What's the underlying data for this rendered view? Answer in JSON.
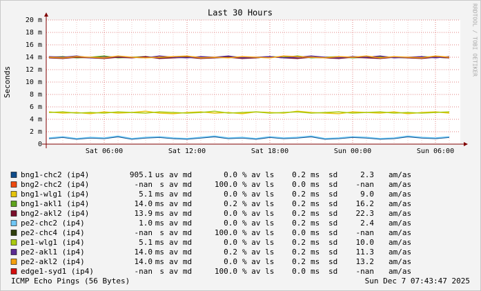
{
  "chart_data": {
    "type": "line",
    "title": "Last 30 Hours",
    "y_label": "Seconds",
    "side_note": "RRDTOOL / TOBI OETIKER",
    "footer_left": "ICMP Echo Pings (56 Bytes)",
    "footer_right": "Sun Dec  7 07:43:47 2025",
    "grid": true,
    "xlim": [
      "Sat 01:48",
      "Sun 07:48"
    ],
    "xticks": [
      "Sat 06:00",
      "Sat 12:00",
      "Sat 18:00",
      "Sun 00:00",
      "Sun 06:00"
    ],
    "ylim": [
      0,
      0.02
    ],
    "yticks": [
      0,
      {
        "value": 0.002,
        "label": "2 m"
      },
      {
        "value": 0.004,
        "label": "4 m"
      },
      {
        "value": 0.006,
        "label": "6 m"
      },
      {
        "value": 0.008,
        "label": "8 m"
      },
      {
        "value": 0.01,
        "label": "10 m"
      },
      {
        "value": 0.012,
        "label": "12 m"
      },
      {
        "value": 0.014,
        "label": "14 m"
      },
      {
        "value": 0.016,
        "label": "16 m"
      },
      {
        "value": 0.018,
        "label": "18 m"
      },
      {
        "value": 0.02,
        "label": "20 m"
      }
    ],
    "x": [
      "Sat 02:00",
      "Sat 03:00",
      "Sat 04:00",
      "Sat 05:00",
      "Sat 06:00",
      "Sat 07:00",
      "Sat 08:00",
      "Sat 09:00",
      "Sat 10:00",
      "Sat 11:00",
      "Sat 12:00",
      "Sat 13:00",
      "Sat 14:00",
      "Sat 15:00",
      "Sat 16:00",
      "Sat 17:00",
      "Sat 18:00",
      "Sat 19:00",
      "Sat 20:00",
      "Sat 21:00",
      "Sat 22:00",
      "Sat 23:00",
      "Sun 00:00",
      "Sun 01:00",
      "Sun 02:00",
      "Sun 03:00",
      "Sun 04:00",
      "Sun 05:00",
      "Sun 06:00",
      "Sun 07:00"
    ],
    "legend_labels": {
      "median": "av md",
      "loss": "% av ls",
      "sd": "sd",
      "ratio": "am/as"
    },
    "series": [
      {
        "name": "bng1-chc2 (ip4)",
        "color": "#0f4c8a",
        "median": "905.1",
        "median_unit": "us",
        "loss": "0.0",
        "sd": "0.2",
        "sd_unit": "ms",
        "ratio": "2.3",
        "values": [
          0.0009,
          0.0011,
          0.0008,
          0.001,
          0.0009,
          0.0012,
          0.0008,
          0.001,
          0.0011,
          0.0009,
          0.0008,
          0.001,
          0.0012,
          0.0009,
          0.001,
          0.0008,
          0.0011,
          0.0009,
          0.001,
          0.0012,
          0.0008,
          0.0009,
          0.0011,
          0.001,
          0.0008,
          0.0009,
          0.0012,
          0.001,
          0.0009,
          0.0011
        ]
      },
      {
        "name": "bng2-chc2 (ip4)",
        "color": "#ee4a0f",
        "median": "-nan",
        "median_unit": "s",
        "loss": "100.0",
        "sd": "0.0",
        "sd_unit": "ms",
        "ratio": "-nan",
        "values": [
          null,
          null,
          null,
          null,
          null,
          null,
          null,
          null,
          null,
          null,
          null,
          null,
          null,
          null,
          null,
          null,
          null,
          null,
          null,
          null,
          null,
          null,
          null,
          null,
          null,
          null,
          null,
          null,
          null,
          null
        ]
      },
      {
        "name": "bng1-wlg1 (ip4)",
        "color": "#e6c40a",
        "median": "5.1",
        "median_unit": "ms",
        "loss": "0.0",
        "sd": "0.2",
        "sd_unit": "ms",
        "ratio": "9.0",
        "values": [
          0.0052,
          0.005,
          0.0051,
          0.0049,
          0.0052,
          0.005,
          0.0051,
          0.0053,
          0.005,
          0.0049,
          0.0051,
          0.0052,
          0.005,
          0.0051,
          0.0049,
          0.0052,
          0.0051,
          0.005,
          0.0053,
          0.0051,
          0.005,
          0.0049,
          0.0052,
          0.0051,
          0.005,
          0.0052,
          0.0049,
          0.0051,
          0.0052,
          0.005
        ]
      },
      {
        "name": "bng1-akl1 (ip4)",
        "color": "#5ea31d",
        "median": "14.0",
        "median_unit": "ms",
        "loss": "0.2",
        "sd": "0.2",
        "sd_unit": "ms",
        "ratio": "16.2",
        "values": [
          0.014,
          0.0141,
          0.0139,
          0.014,
          0.0142,
          0.0139,
          0.014,
          0.0141,
          0.0139,
          0.014,
          0.0141,
          0.014,
          0.0139,
          0.0141,
          0.014,
          0.0139,
          0.0141,
          0.014,
          0.0142,
          0.0139,
          0.014,
          0.0141,
          0.0139,
          0.014,
          0.0141,
          0.014,
          0.0139,
          0.0141,
          0.014,
          0.0139
        ]
      },
      {
        "name": "bng2-akl2 (ip4)",
        "color": "#7a0f2b",
        "median": "13.9",
        "median_unit": "ms",
        "loss": "0.0",
        "sd": "0.2",
        "sd_unit": "ms",
        "ratio": "22.3",
        "values": [
          0.0139,
          0.0138,
          0.014,
          0.0139,
          0.0138,
          0.014,
          0.0139,
          0.0141,
          0.0138,
          0.0139,
          0.014,
          0.0138,
          0.0139,
          0.014,
          0.0138,
          0.0139,
          0.0141,
          0.0139,
          0.0138,
          0.014,
          0.0139,
          0.0138,
          0.014,
          0.0139,
          0.0138,
          0.014,
          0.0139,
          0.0138,
          0.014,
          0.0139
        ]
      },
      {
        "name": "pe2-chc2 (ip4)",
        "color": "#6ec6f5",
        "median": "1.0",
        "median_unit": "ms",
        "loss": "0.0",
        "sd": "0.2",
        "sd_unit": "ms",
        "ratio": "2.4",
        "values": [
          0.001,
          0.0012,
          0.0009,
          0.0011,
          0.001,
          0.0013,
          0.0009,
          0.0011,
          0.0012,
          0.001,
          0.0009,
          0.0011,
          0.0013,
          0.001,
          0.0011,
          0.0009,
          0.0012,
          0.001,
          0.0011,
          0.0013,
          0.0009,
          0.001,
          0.0012,
          0.0011,
          0.0009,
          0.001,
          0.0013,
          0.0011,
          0.001,
          0.0012
        ]
      },
      {
        "name": "pe2-chc4 (ip4)",
        "color": "#2f3f0c",
        "median": "-nan",
        "median_unit": "s",
        "loss": "100.0",
        "sd": "0.0",
        "sd_unit": "ms",
        "ratio": "-nan",
        "values": [
          null,
          null,
          null,
          null,
          null,
          null,
          null,
          null,
          null,
          null,
          null,
          null,
          null,
          null,
          null,
          null,
          null,
          null,
          null,
          null,
          null,
          null,
          null,
          null,
          null,
          null,
          null,
          null,
          null,
          null
        ]
      },
      {
        "name": "pe1-wlg1 (ip4)",
        "color": "#a9c90e",
        "median": "5.1",
        "median_unit": "ms",
        "loss": "0.0",
        "sd": "0.2",
        "sd_unit": "ms",
        "ratio": "10.0",
        "values": [
          0.0051,
          0.0052,
          0.005,
          0.0051,
          0.005,
          0.0052,
          0.0051,
          0.005,
          0.0052,
          0.0051,
          0.005,
          0.0051,
          0.0053,
          0.005,
          0.0051,
          0.0052,
          0.005,
          0.0051,
          0.0052,
          0.005,
          0.0051,
          0.0052,
          0.005,
          0.0051,
          0.0052,
          0.005,
          0.0051,
          0.005,
          0.0051,
          0.0052
        ]
      },
      {
        "name": "pe2-akl1 (ip4)",
        "color": "#5a2a91",
        "median": "14.0",
        "median_unit": "ms",
        "loss": "0.2",
        "sd": "0.2",
        "sd_unit": "ms",
        "ratio": "11.3",
        "values": [
          0.0141,
          0.014,
          0.0142,
          0.0139,
          0.014,
          0.0141,
          0.014,
          0.0139,
          0.0142,
          0.014,
          0.0139,
          0.0141,
          0.014,
          0.0142,
          0.0139,
          0.014,
          0.0141,
          0.0139,
          0.014,
          0.0142,
          0.014,
          0.0139,
          0.0141,
          0.014,
          0.0142,
          0.0139,
          0.014,
          0.0141,
          0.0139,
          0.0141
        ]
      },
      {
        "name": "pe2-akl2 (ip4)",
        "color": "#f5a00f",
        "median": "14.0",
        "median_unit": "ms",
        "loss": "0.0",
        "sd": "0.2",
        "sd_unit": "ms",
        "ratio": "13.2",
        "values": [
          0.014,
          0.0139,
          0.0141,
          0.014,
          0.0139,
          0.0142,
          0.014,
          0.0139,
          0.014,
          0.0141,
          0.0142,
          0.0139,
          0.014,
          0.0139,
          0.0141,
          0.014,
          0.0139,
          0.0142,
          0.0141,
          0.014,
          0.0139,
          0.0141,
          0.014,
          0.0142,
          0.0139,
          0.0141,
          0.014,
          0.0139,
          0.0142,
          0.014
        ]
      },
      {
        "name": "edge1-syd1 (ip4)",
        "color": "#d40f0f",
        "median": "-nan",
        "median_unit": "s",
        "loss": "100.0",
        "sd": "0.0",
        "sd_unit": "ms",
        "ratio": "-nan",
        "values": [
          null,
          null,
          null,
          null,
          null,
          null,
          null,
          null,
          null,
          null,
          null,
          null,
          null,
          null,
          null,
          null,
          null,
          null,
          null,
          null,
          null,
          null,
          null,
          null,
          null,
          null,
          null,
          null,
          null,
          null
        ]
      }
    ]
  }
}
